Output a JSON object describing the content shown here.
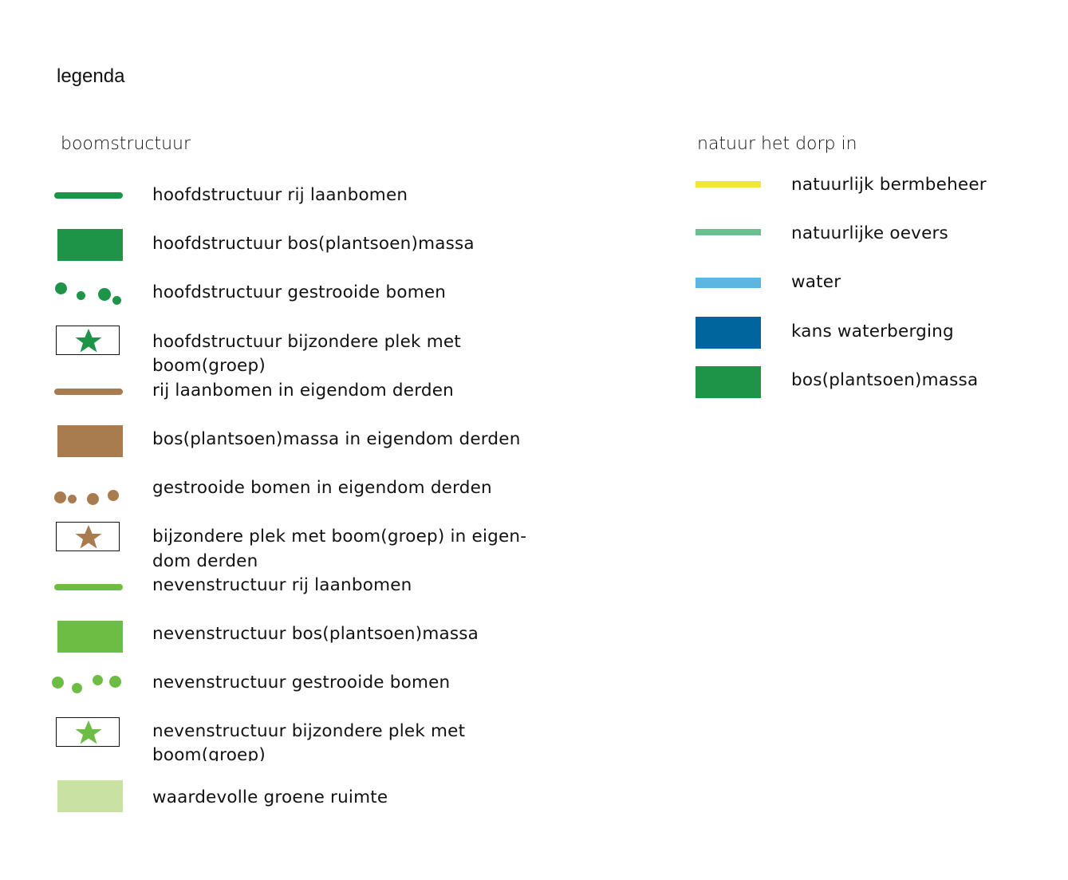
{
  "title": "legenda",
  "left_column": {
    "heading": "boomstructuur",
    "items": [
      {
        "label": "hoofdstructuur rij laanbomen",
        "symbol": "line",
        "color": "#1e9448"
      },
      {
        "label": "hoofdstructuur bos(plantsoen)massa",
        "symbol": "rect",
        "color": "#1e9448"
      },
      {
        "label": "hoofdstructuur gestrooide bomen",
        "symbol": "dots",
        "color": "#1e9448"
      },
      {
        "label_line1": "hoofdstructuur bijzondere plek met",
        "label_line2": "boom(groep)",
        "symbol": "star-box",
        "color": "#1e9448"
      },
      {
        "label": "rij laanbomen in eigendom derden",
        "symbol": "line",
        "color": "#a97c50"
      },
      {
        "label": "bos(plantsoen)massa in eigendom derden",
        "symbol": "rect",
        "color": "#a97c50"
      },
      {
        "label": "gestrooide bomen in eigendom derden",
        "symbol": "dots",
        "color": "#a97c50"
      },
      {
        "label_line1": "bijzondere plek met boom(groep) in eigen-",
        "label_line2": "dom derden",
        "symbol": "star-box",
        "color": "#a97c50"
      },
      {
        "label": "nevenstructuur rij laanbomen",
        "symbol": "line",
        "color": "#6dbd45"
      },
      {
        "label": "nevenstructuur bos(plantsoen)massa",
        "symbol": "rect",
        "color": "#6dbd45"
      },
      {
        "label": "nevenstructuur gestrooide bomen",
        "symbol": "dots",
        "color": "#6dbd45"
      },
      {
        "label_line1": "nevenstructuur bijzondere plek met",
        "label_line2": "boom(groep)",
        "symbol": "star-box",
        "color": "#6dbd45"
      },
      {
        "label": "waardevolle groene ruimte",
        "symbol": "rect",
        "color": "#c9e2a3"
      }
    ]
  },
  "right_column": {
    "heading": "natuur het dorp in",
    "items": [
      {
        "label": "natuurlijk bermbeheer",
        "symbol": "flat-line",
        "color": "#f3e735"
      },
      {
        "label": "natuurlijke oevers",
        "symbol": "flat-line",
        "color": "#6bbf8e"
      },
      {
        "label": "water",
        "symbol": "band",
        "color": "#5db6df"
      },
      {
        "label": "kans waterberging",
        "symbol": "rect",
        "color": "#00659d"
      },
      {
        "label": "bos(plantsoen)massa",
        "symbol": "rect",
        "color": "#1e9448"
      }
    ]
  }
}
